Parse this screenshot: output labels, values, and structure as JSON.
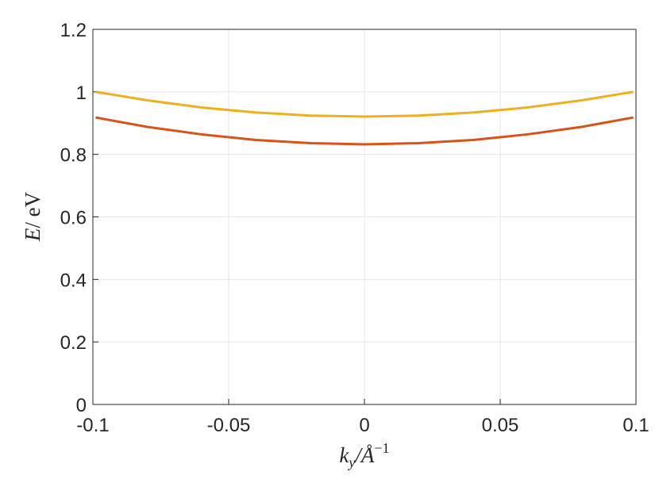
{
  "chart_data": {
    "type": "line",
    "xlabel": [
      "k",
      "y",
      "/Å",
      "−1"
    ],
    "ylabel": [
      "E",
      "/ eV"
    ],
    "x": [
      -0.099,
      -0.08,
      -0.06,
      -0.04,
      -0.02,
      0,
      0.02,
      0.04,
      0.06,
      0.08,
      0.099
    ],
    "series": [
      {
        "color": "#EDB120",
        "values": [
          1.0,
          0.973,
          0.95,
          0.934,
          0.924,
          0.921,
          0.924,
          0.934,
          0.95,
          0.973,
          1.0
        ]
      },
      {
        "color": "#D95319",
        "values": [
          0.918,
          0.888,
          0.864,
          0.846,
          0.836,
          0.832,
          0.836,
          0.846,
          0.864,
          0.888,
          0.918
        ]
      }
    ],
    "xlim": [
      -0.1,
      0.1
    ],
    "xticks": [
      -0.1,
      -0.05,
      0,
      0.05,
      0.1
    ],
    "ylim": [
      0,
      1.2
    ],
    "yticks": [
      0,
      0.2,
      0.4,
      0.6,
      0.8,
      1,
      1.2
    ],
    "grid": true
  }
}
